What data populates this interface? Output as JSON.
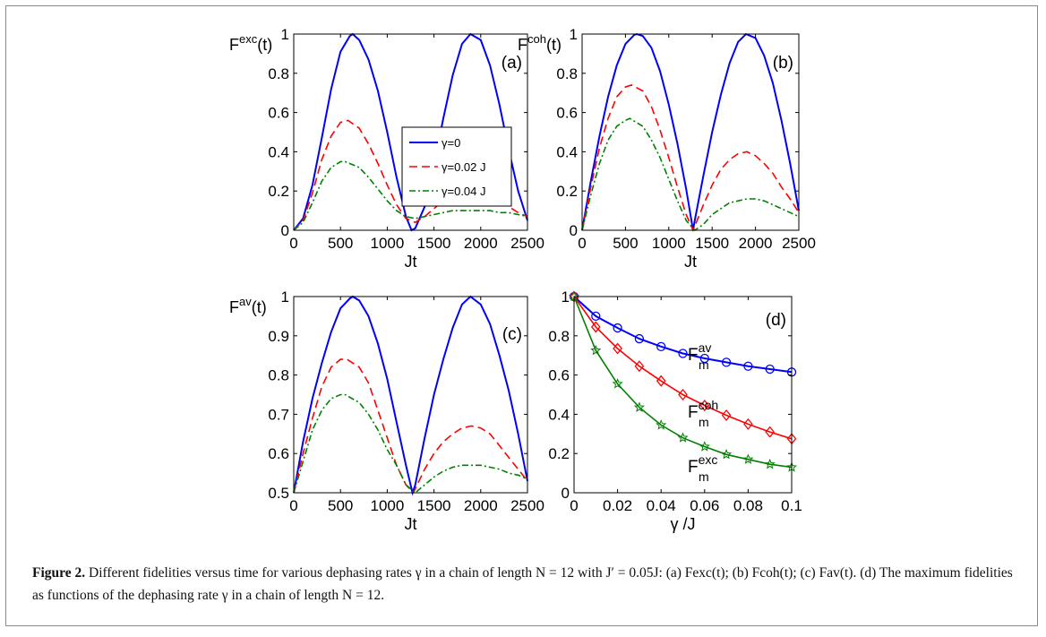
{
  "caption": {
    "label": "Figure 2.",
    "text": "Different fidelities versus time for various dephasing rates γ in a chain of length N = 12 with J′ = 0.05J: (a) Fexc(t); (b) Fcoh(t); (c) Fav(t). (d) The maximum fidelities as functions of the dephasing rate γ in a chain of length N = 12."
  },
  "colors": {
    "blue": "#0000ff",
    "red": "#ff0000",
    "green": "#008000",
    "axis": "#000000"
  },
  "chart_data": [
    {
      "panel": "(a)",
      "type": "line",
      "ylabel": "Fexc(t)",
      "xlabel": "Jt",
      "xlim": [
        0,
        2500
      ],
      "ylim": [
        0,
        1
      ],
      "xticks": [
        "0",
        "500",
        "1000",
        "1500",
        "2000",
        "2500"
      ],
      "yticks": [
        "0",
        "0.2",
        "0.4",
        "0.6",
        "0.8",
        "1"
      ],
      "legend": {
        "position": "center-right",
        "entries": [
          "γ=0",
          "γ=0.02 J",
          "γ=0.04 J"
        ]
      },
      "series": [
        {
          "name": "γ=0",
          "color": "#0000ff",
          "style": "solid",
          "x": [
            0,
            100,
            200,
            300,
            400,
            500,
            600,
            630,
            700,
            800,
            900,
            1000,
            1100,
            1200,
            1260,
            1300,
            1400,
            1500,
            1600,
            1700,
            1800,
            1890,
            2000,
            2100,
            2200,
            2300,
            2400,
            2500
          ],
          "y": [
            0,
            0.06,
            0.23,
            0.47,
            0.72,
            0.91,
            0.99,
            1.0,
            0.97,
            0.87,
            0.71,
            0.5,
            0.27,
            0.07,
            0.0,
            0.01,
            0.12,
            0.33,
            0.57,
            0.79,
            0.95,
            1.0,
            0.97,
            0.84,
            0.64,
            0.41,
            0.2,
            0.05
          ]
        },
        {
          "name": "γ=0.02 J",
          "color": "#ff0000",
          "style": "dashed",
          "x": [
            0,
            100,
            200,
            300,
            400,
            500,
            580,
            700,
            800,
            900,
            1000,
            1100,
            1200,
            1300,
            1400,
            1500,
            1600,
            1700,
            1800,
            1900,
            2000,
            2100,
            2200,
            2300,
            2400,
            2500
          ],
          "y": [
            0,
            0.05,
            0.19,
            0.36,
            0.48,
            0.55,
            0.56,
            0.52,
            0.44,
            0.34,
            0.23,
            0.13,
            0.06,
            0.04,
            0.07,
            0.11,
            0.15,
            0.18,
            0.2,
            0.21,
            0.2,
            0.18,
            0.15,
            0.12,
            0.09,
            0.07
          ]
        },
        {
          "name": "γ=0.04 J",
          "color": "#008000",
          "style": "dashdot",
          "x": [
            0,
            100,
            200,
            300,
            400,
            500,
            550,
            700,
            800,
            900,
            1000,
            1100,
            1200,
            1300,
            1400,
            1500,
            1600,
            1700,
            1800,
            1900,
            2000,
            2100,
            2200,
            2300,
            2400,
            2500
          ],
          "y": [
            0,
            0.04,
            0.14,
            0.25,
            0.32,
            0.35,
            0.35,
            0.32,
            0.27,
            0.21,
            0.15,
            0.1,
            0.07,
            0.06,
            0.07,
            0.08,
            0.09,
            0.1,
            0.1,
            0.1,
            0.1,
            0.1,
            0.09,
            0.09,
            0.08,
            0.07
          ]
        }
      ]
    },
    {
      "panel": "(b)",
      "type": "line",
      "ylabel": "Fcoh(t)",
      "xlabel": "Jt",
      "xlim": [
        0,
        2500
      ],
      "ylim": [
        0,
        1
      ],
      "xticks": [
        "0",
        "500",
        "1000",
        "1500",
        "2000",
        "2500"
      ],
      "yticks": [
        "0",
        "0.2",
        "0.4",
        "0.6",
        "0.8",
        "1"
      ],
      "series": [
        {
          "name": "γ=0",
          "color": "#0000ff",
          "style": "solid",
          "x": [
            0,
            100,
            200,
            300,
            400,
            500,
            600,
            630,
            700,
            800,
            900,
            1000,
            1100,
            1200,
            1280,
            1300,
            1400,
            1500,
            1600,
            1700,
            1800,
            1890,
            2000,
            2100,
            2200,
            2300,
            2400,
            2500
          ],
          "y": [
            0,
            0.25,
            0.48,
            0.68,
            0.84,
            0.95,
            0.995,
            1.0,
            0.99,
            0.93,
            0.81,
            0.64,
            0.44,
            0.21,
            0.0,
            0.05,
            0.28,
            0.5,
            0.69,
            0.85,
            0.96,
            1.0,
            0.98,
            0.89,
            0.75,
            0.56,
            0.34,
            0.1
          ]
        },
        {
          "name": "γ=0.02 J",
          "color": "#ff0000",
          "style": "dashed",
          "x": [
            0,
            100,
            200,
            300,
            400,
            500,
            570,
            700,
            800,
            900,
            1000,
            1100,
            1200,
            1280,
            1300,
            1400,
            1500,
            1600,
            1700,
            1800,
            1900,
            2000,
            2100,
            2200,
            2300,
            2400,
            2500
          ],
          "y": [
            0,
            0.22,
            0.42,
            0.57,
            0.68,
            0.73,
            0.74,
            0.71,
            0.63,
            0.51,
            0.37,
            0.22,
            0.08,
            0.0,
            0.02,
            0.13,
            0.23,
            0.31,
            0.36,
            0.39,
            0.4,
            0.38,
            0.34,
            0.29,
            0.22,
            0.16,
            0.09
          ]
        },
        {
          "name": "γ=0.04 J",
          "color": "#008000",
          "style": "dashdot",
          "x": [
            0,
            100,
            200,
            300,
            400,
            500,
            550,
            700,
            800,
            900,
            1000,
            1100,
            1200,
            1300,
            1400,
            1500,
            1600,
            1700,
            1800,
            1900,
            2000,
            2100,
            2200,
            2300,
            2400,
            2500
          ],
          "y": [
            0,
            0.18,
            0.34,
            0.46,
            0.53,
            0.56,
            0.57,
            0.53,
            0.46,
            0.37,
            0.26,
            0.15,
            0.05,
            0.0,
            0.03,
            0.08,
            0.11,
            0.14,
            0.15,
            0.16,
            0.16,
            0.15,
            0.13,
            0.11,
            0.09,
            0.07
          ]
        }
      ]
    },
    {
      "panel": "(c)",
      "type": "line",
      "ylabel": "Fav(t)",
      "xlabel": "Jt",
      "xlim": [
        0,
        2500
      ],
      "ylim": [
        0.5,
        1
      ],
      "xticks": [
        "0",
        "500",
        "1000",
        "1500",
        "2000",
        "2500"
      ],
      "yticks": [
        "0.5",
        "0.6",
        "0.7",
        "0.8",
        "0.9",
        "1"
      ],
      "series": [
        {
          "name": "γ=0",
          "color": "#0000ff",
          "style": "solid",
          "x": [
            0,
            100,
            200,
            300,
            400,
            500,
            600,
            630,
            700,
            800,
            900,
            1000,
            1100,
            1200,
            1270,
            1300,
            1400,
            1500,
            1600,
            1700,
            1800,
            1890,
            2000,
            2100,
            2200,
            2300,
            2400,
            2500
          ],
          "y": [
            0.5,
            0.63,
            0.74,
            0.83,
            0.91,
            0.97,
            0.995,
            1.0,
            0.99,
            0.95,
            0.88,
            0.79,
            0.68,
            0.57,
            0.5,
            0.52,
            0.64,
            0.75,
            0.84,
            0.92,
            0.98,
            1.0,
            0.98,
            0.93,
            0.85,
            0.76,
            0.65,
            0.53
          ]
        },
        {
          "name": "γ=0.02 J",
          "color": "#ff0000",
          "style": "dashed",
          "x": [
            0,
            100,
            200,
            300,
            400,
            500,
            570,
            700,
            800,
            900,
            1000,
            1100,
            1200,
            1280,
            1300,
            1400,
            1500,
            1600,
            1700,
            1800,
            1900,
            2000,
            2100,
            2200,
            2300,
            2400,
            2500
          ],
          "y": [
            0.5,
            0.6,
            0.69,
            0.77,
            0.82,
            0.84,
            0.84,
            0.82,
            0.78,
            0.71,
            0.64,
            0.57,
            0.52,
            0.5,
            0.51,
            0.56,
            0.6,
            0.63,
            0.65,
            0.665,
            0.67,
            0.665,
            0.65,
            0.62,
            0.59,
            0.56,
            0.53
          ]
        },
        {
          "name": "γ=0.04 J",
          "color": "#008000",
          "style": "dashdot",
          "x": [
            0,
            100,
            200,
            300,
            400,
            500,
            550,
            700,
            800,
            900,
            1000,
            1100,
            1200,
            1300,
            1400,
            1500,
            1600,
            1700,
            1800,
            1900,
            2000,
            2100,
            2200,
            2300,
            2400,
            2500
          ],
          "y": [
            0.5,
            0.58,
            0.66,
            0.71,
            0.74,
            0.75,
            0.75,
            0.73,
            0.7,
            0.66,
            0.61,
            0.57,
            0.52,
            0.5,
            0.52,
            0.54,
            0.555,
            0.565,
            0.57,
            0.57,
            0.57,
            0.565,
            0.56,
            0.55,
            0.545,
            0.535
          ]
        }
      ]
    },
    {
      "panel": "(d)",
      "type": "line",
      "xlabel": "γ /J",
      "ylabel": "",
      "xlim": [
        0,
        0.1
      ],
      "ylim": [
        0,
        1
      ],
      "xticks": [
        "0",
        "0.02",
        "0.04",
        "0.06",
        "0.08",
        "0.1"
      ],
      "yticks": [
        "0",
        "0.2",
        "0.4",
        "0.6",
        "0.8",
        "1"
      ],
      "series": [
        {
          "name": "Fm av",
          "color": "#0000ff",
          "marker": "circle",
          "x": [
            0,
            0.01,
            0.02,
            0.03,
            0.04,
            0.05,
            0.06,
            0.07,
            0.08,
            0.09,
            0.1
          ],
          "y": [
            1.0,
            0.9,
            0.84,
            0.785,
            0.745,
            0.71,
            0.685,
            0.665,
            0.645,
            0.63,
            0.615
          ]
        },
        {
          "name": "Fm coh",
          "color": "#ff0000",
          "marker": "diamond",
          "x": [
            0,
            0.01,
            0.02,
            0.03,
            0.04,
            0.05,
            0.06,
            0.07,
            0.08,
            0.09,
            0.1
          ],
          "y": [
            1.0,
            0.845,
            0.735,
            0.645,
            0.57,
            0.5,
            0.445,
            0.395,
            0.35,
            0.31,
            0.275
          ]
        },
        {
          "name": "Fm exc",
          "color": "#008000",
          "marker": "star",
          "x": [
            0,
            0.01,
            0.02,
            0.03,
            0.04,
            0.05,
            0.06,
            0.07,
            0.08,
            0.09,
            0.1
          ],
          "y": [
            1.0,
            0.725,
            0.555,
            0.435,
            0.345,
            0.28,
            0.235,
            0.195,
            0.17,
            0.145,
            0.13
          ]
        }
      ]
    }
  ]
}
